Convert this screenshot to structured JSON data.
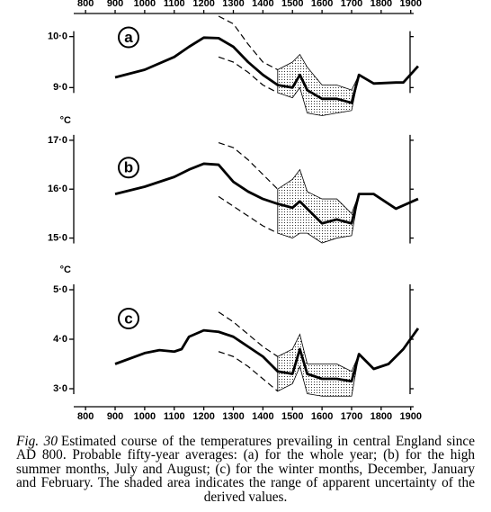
{
  "chart_data": [
    {
      "type": "line",
      "label": "a",
      "xlim": [
        760,
        1910
      ],
      "ylim": [
        8.6,
        10.4
      ],
      "xaxis": "top",
      "xticks": [
        800,
        900,
        1000,
        1100,
        1200,
        1300,
        1400,
        1500,
        1600,
        1700,
        1800,
        1900
      ],
      "yticks": [
        {
          "value": 9,
          "label": "9·0"
        },
        {
          "value": 10,
          "label": "10·0"
        }
      ],
      "series": [
        {
          "style": "solid",
          "color": "#000000",
          "x": [
            900,
            1000,
            1100,
            1150,
            1200,
            1250,
            1300,
            1350,
            1400,
            1450,
            1500,
            1525,
            1550,
            1600,
            1650,
            1700,
            1725,
            1775,
            1850,
            1875,
            1925
          ],
          "values": [
            9.2,
            9.35,
            9.6,
            9.8,
            9.98,
            9.97,
            9.8,
            9.5,
            9.25,
            9.05,
            9.0,
            9.25,
            8.95,
            8.78,
            8.78,
            8.7,
            9.25,
            9.08,
            9.1,
            9.1,
            9.42
          ]
        },
        {
          "style": "dashed",
          "color": "#000000",
          "x": [
            1250,
            1300,
            1350,
            1400,
            1450
          ],
          "values": [
            10.4,
            10.25,
            9.85,
            9.5,
            9.35
          ]
        },
        {
          "style": "dashed",
          "color": "#000000",
          "x": [
            1250,
            1300,
            1350,
            1400,
            1450
          ],
          "values": [
            9.6,
            9.5,
            9.3,
            9.05,
            8.9
          ]
        }
      ],
      "band": {
        "color": "#000000",
        "x": [
          1450,
          1500,
          1525,
          1550,
          1600,
          1650,
          1700,
          1725
        ],
        "upper": [
          9.35,
          9.5,
          9.65,
          9.4,
          9.05,
          9.05,
          8.95,
          9.25
        ],
        "lower": [
          8.9,
          8.8,
          9.0,
          8.5,
          8.45,
          8.5,
          8.55,
          9.25
        ]
      }
    },
    {
      "type": "line",
      "label": "b",
      "ylabel": "°C",
      "xlim": [
        760,
        1910
      ],
      "ylim": [
        14.9,
        17.2
      ],
      "yticks": [
        {
          "value": 15,
          "label": "15·0"
        },
        {
          "value": 16,
          "label": "16·0"
        },
        {
          "value": 17,
          "label": "17·0"
        }
      ],
      "series": [
        {
          "style": "solid",
          "color": "#000000",
          "x": [
            900,
            1000,
            1100,
            1150,
            1200,
            1250,
            1300,
            1350,
            1400,
            1450,
            1500,
            1525,
            1550,
            1600,
            1650,
            1700,
            1725,
            1775,
            1850,
            1925
          ],
          "values": [
            15.9,
            16.05,
            16.25,
            16.4,
            16.52,
            16.5,
            16.15,
            15.95,
            15.8,
            15.7,
            15.62,
            15.75,
            15.6,
            15.3,
            15.38,
            15.3,
            15.9,
            15.9,
            15.6,
            15.8
          ]
        },
        {
          "style": "dashed",
          "color": "#000000",
          "x": [
            1250,
            1300,
            1350,
            1400,
            1450
          ],
          "values": [
            16.95,
            16.85,
            16.6,
            16.3,
            16.0
          ]
        },
        {
          "style": "dashed",
          "color": "#000000",
          "x": [
            1250,
            1300,
            1350,
            1400,
            1450
          ],
          "values": [
            15.85,
            15.65,
            15.45,
            15.25,
            15.1
          ]
        }
      ],
      "band": {
        "color": "#000000",
        "x": [
          1450,
          1500,
          1525,
          1550,
          1600,
          1650,
          1700,
          1725
        ],
        "upper": [
          16.0,
          16.2,
          16.4,
          15.95,
          15.8,
          15.8,
          15.5,
          15.9
        ],
        "lower": [
          15.1,
          15.0,
          15.1,
          15.1,
          14.9,
          15.0,
          15.05,
          15.9
        ]
      }
    },
    {
      "type": "line",
      "label": "c",
      "ylabel": "°C",
      "xlim": [
        760,
        1910
      ],
      "ylim": [
        2.8,
        5.2
      ],
      "xaxis": "bottom",
      "xticks": [
        800,
        900,
        1000,
        1100,
        1200,
        1300,
        1400,
        1500,
        1600,
        1700,
        1800,
        1900
      ],
      "yticks": [
        {
          "value": 3,
          "label": "3·0"
        },
        {
          "value": 4,
          "label": "4·0"
        },
        {
          "value": 5,
          "label": "5·0"
        }
      ],
      "series": [
        {
          "style": "solid",
          "color": "#000000",
          "x": [
            900,
            1000,
            1050,
            1100,
            1125,
            1150,
            1200,
            1250,
            1300,
            1350,
            1400,
            1450,
            1500,
            1525,
            1550,
            1600,
            1650,
            1700,
            1725,
            1775,
            1825,
            1875,
            1925
          ],
          "values": [
            3.5,
            3.72,
            3.78,
            3.75,
            3.8,
            4.05,
            4.18,
            4.15,
            4.05,
            3.85,
            3.65,
            3.35,
            3.3,
            3.8,
            3.3,
            3.2,
            3.2,
            3.15,
            3.7,
            3.4,
            3.5,
            3.8,
            4.22
          ]
        },
        {
          "style": "dashed",
          "color": "#000000",
          "x": [
            1250,
            1300,
            1350,
            1400,
            1450
          ],
          "values": [
            4.55,
            4.35,
            4.1,
            3.85,
            3.65
          ]
        },
        {
          "style": "dashed",
          "color": "#000000",
          "x": [
            1250,
            1300,
            1350,
            1400,
            1450
          ],
          "values": [
            3.75,
            3.65,
            3.45,
            3.2,
            2.95
          ]
        }
      ],
      "band": {
        "color": "#000000",
        "x": [
          1450,
          1500,
          1525,
          1550,
          1600,
          1650,
          1700,
          1725
        ],
        "upper": [
          3.65,
          3.8,
          4.1,
          3.5,
          3.5,
          3.5,
          3.35,
          3.7
        ],
        "lower": [
          2.95,
          3.1,
          3.45,
          2.9,
          2.85,
          2.85,
          2.85,
          3.7
        ]
      }
    }
  ],
  "caption": {
    "label": "Fig. 30",
    "text": "Estimated course of the temperatures prevailing in central England since AD 800. Probable fifty-year averages: (a) for the whole year; (b) for the high summer months, July and August; (c) for the winter months, December, January and February. The shaded area indicates the range of apparent uncertainty of the derived values."
  }
}
